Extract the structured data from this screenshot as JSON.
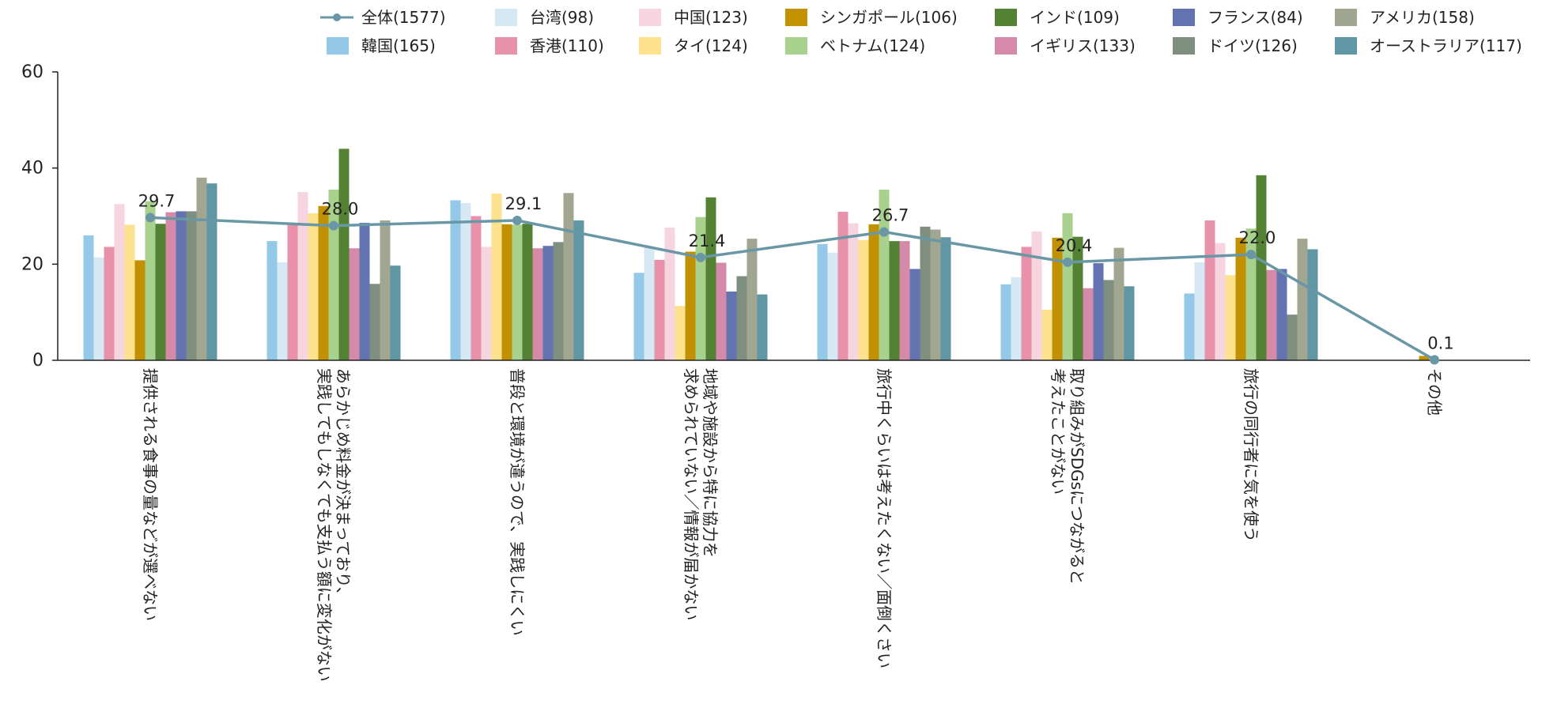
{
  "chart_data": {
    "type": "bar",
    "title": "",
    "xlabel": "",
    "ylabel": "",
    "ylim": [
      0,
      60
    ],
    "yticks": [
      0,
      20,
      40,
      60
    ],
    "legend_position": "top",
    "categories": [
      [
        "提供される食事の量などが選べない"
      ],
      [
        "あらかじめ料金が決まっており、",
        "実践してもしなくても支払う額に変化がない"
      ],
      [
        "普段と環境が違うので、実践しにくい"
      ],
      [
        "地域や施設から特に協力を",
        "求められていない／情報が届かない"
      ],
      [
        "旅行中くらいは考えたくない／面倒くさい"
      ],
      [
        "取り組みがSDGsにつながると",
        "考えたことがない"
      ],
      [
        "旅行の同行者に気を使う"
      ],
      [
        "その他"
      ]
    ],
    "line_series": {
      "name": "全体(1577)",
      "color": "#6a97a6",
      "values": [
        29.7,
        28.0,
        29.1,
        21.4,
        26.7,
        20.4,
        22.0,
        0.1
      ],
      "labels": [
        "29.7",
        "28.0",
        "29.1",
        "21.4",
        "26.7",
        "20.4",
        "22.0",
        "0.1"
      ]
    },
    "series": [
      {
        "name": "韓国(165)",
        "color": "#93c8e8",
        "values": [
          26.0,
          24.8,
          33.3,
          18.2,
          24.2,
          15.8,
          13.9,
          0
        ]
      },
      {
        "name": "台湾(98)",
        "color": "#d6e8f4",
        "values": [
          21.4,
          20.4,
          32.7,
          23.5,
          22.4,
          17.3,
          20.4,
          0
        ]
      },
      {
        "name": "香港(110)",
        "color": "#e791ab",
        "values": [
          23.6,
          28.2,
          30.0,
          20.9,
          30.9,
          23.6,
          29.1,
          0
        ]
      },
      {
        "name": "中国(123)",
        "color": "#f6d5e0",
        "values": [
          32.5,
          35.0,
          23.6,
          27.6,
          28.5,
          26.8,
          24.4,
          0
        ]
      },
      {
        "name": "タイ(124)",
        "color": "#fde18d",
        "values": [
          28.2,
          30.6,
          34.7,
          11.3,
          25.0,
          10.5,
          17.7,
          0
        ]
      },
      {
        "name": "シンガポール(106)",
        "color": "#c19100",
        "values": [
          20.8,
          32.1,
          28.3,
          22.6,
          28.3,
          25.5,
          25.5,
          0.9
        ]
      },
      {
        "name": "ベトナム(124)",
        "color": "#a9d18e",
        "values": [
          33.1,
          35.5,
          28.2,
          29.8,
          35.5,
          30.6,
          27.4,
          0
        ]
      },
      {
        "name": "インド(109)",
        "color": "#548235",
        "values": [
          28.4,
          44.0,
          28.4,
          33.9,
          24.8,
          25.7,
          38.5,
          0
        ]
      },
      {
        "name": "イギリス(133)",
        "color": "#d48aa8",
        "values": [
          30.8,
          23.3,
          23.3,
          20.3,
          24.8,
          15.0,
          18.8,
          0
        ]
      },
      {
        "name": "フランス(84)",
        "color": "#6373b0",
        "values": [
          31.0,
          28.6,
          23.8,
          14.3,
          19.0,
          20.2,
          19.0,
          0
        ]
      },
      {
        "name": "ドイツ(126)",
        "color": "#7f8f7f",
        "values": [
          31.0,
          15.9,
          24.6,
          17.5,
          27.8,
          16.7,
          9.5,
          0
        ]
      },
      {
        "name": "アメリカ(158)",
        "color": "#a0a690",
        "values": [
          38.0,
          29.1,
          34.8,
          25.3,
          27.2,
          23.4,
          25.3,
          0
        ]
      },
      {
        "name": "オーストラリア(117)",
        "color": "#5f97a4",
        "values": [
          36.8,
          19.7,
          29.1,
          13.7,
          25.6,
          15.4,
          23.1,
          0
        ]
      }
    ]
  }
}
